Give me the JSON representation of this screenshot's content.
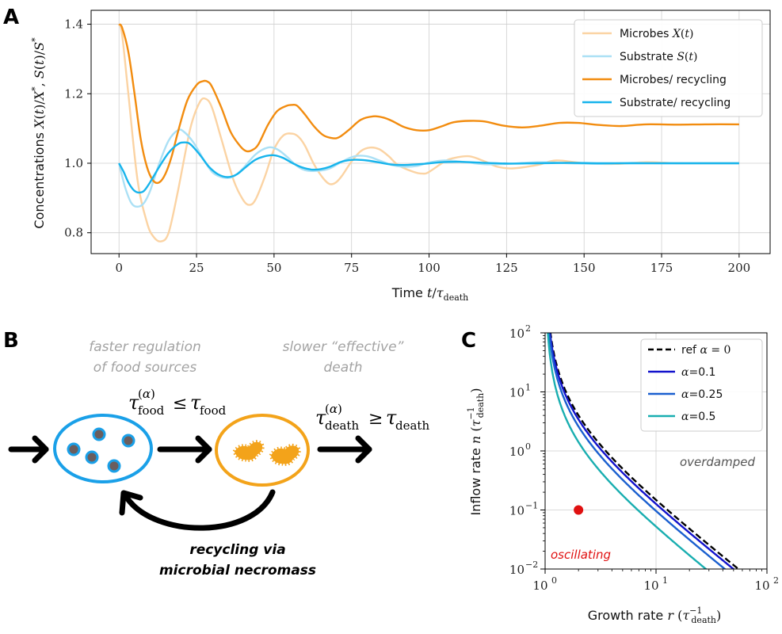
{
  "chart_data": [
    {
      "panel": "A",
      "type": "line",
      "xlabel": "Time t/τ_death",
      "ylabel": "Concentrations X(t)/X*, S(t)/S*",
      "xlim": [
        -9,
        210
      ],
      "ylim": [
        0.74,
        1.44
      ],
      "xticks": [
        0,
        25,
        50,
        75,
        100,
        125,
        150,
        175,
        200
      ],
      "yticks": [
        0.8,
        1.0,
        1.2,
        1.4
      ],
      "ytick_labels": [
        "0.8",
        "1.0",
        "1.2",
        "1.4"
      ],
      "grid": true,
      "legend_position": "top-right",
      "series": [
        {
          "name": "Microbes X(t)",
          "color": "#fbd3a3",
          "width": 2.4,
          "x": [
            0,
            1,
            3,
            6,
            9,
            11,
            13.5,
            16,
            19,
            23,
            26,
            28,
            30,
            33,
            37,
            40,
            42,
            44,
            47,
            50,
            53,
            56,
            58,
            60,
            63,
            66,
            68,
            70,
            72,
            75,
            78,
            81,
            84,
            87,
            90,
            95,
            98,
            100,
            105,
            108,
            113,
            118,
            122,
            127,
            135,
            141,
            150,
            160,
            170,
            180,
            190,
            200
          ],
          "values": [
            1.4,
            1.37,
            1.2,
            0.95,
            0.83,
            0.79,
            0.775,
            0.8,
            0.92,
            1.1,
            1.175,
            1.185,
            1.16,
            1.07,
            0.95,
            0.895,
            0.88,
            0.895,
            0.96,
            1.04,
            1.08,
            1.085,
            1.075,
            1.05,
            0.995,
            0.955,
            0.94,
            0.945,
            0.965,
            1.005,
            1.035,
            1.045,
            1.04,
            1.02,
            0.995,
            0.975,
            0.97,
            0.975,
            1.005,
            1.015,
            1.02,
            1.005,
            0.99,
            0.985,
            0.995,
            1.008,
            1.0,
            0.998,
            1.003,
            1.0,
            1.0,
            1.0
          ]
        },
        {
          "name": "Substrate S(t)",
          "color": "#abe0f5",
          "width": 2.4,
          "x": [
            0,
            2,
            4,
            6,
            8,
            10,
            13,
            16,
            19,
            21,
            24,
            27,
            30,
            33,
            35,
            37,
            40,
            44,
            48,
            51,
            54,
            57,
            60,
            64,
            68,
            72,
            76,
            80,
            84,
            88,
            92,
            96,
            100,
            105,
            110,
            118,
            125,
            135,
            145,
            155,
            165,
            175,
            190,
            200
          ],
          "values": [
            1.0,
            0.93,
            0.885,
            0.875,
            0.885,
            0.92,
            1.0,
            1.065,
            1.095,
            1.09,
            1.06,
            1.015,
            0.975,
            0.96,
            0.958,
            0.962,
            0.985,
            1.025,
            1.045,
            1.04,
            1.02,
            0.995,
            0.98,
            0.978,
            0.985,
            1.005,
            1.02,
            1.02,
            1.008,
            0.995,
            0.99,
            0.992,
            1.002,
            1.008,
            1.005,
            0.997,
            0.998,
            1.003,
            1.0,
            0.998,
            1.001,
            1.0,
            1.0,
            1.0
          ]
        },
        {
          "name": "Microbes/ recycling",
          "color": "#f28c0f",
          "width": 2.4,
          "x": [
            0,
            1,
            3,
            5,
            7,
            9,
            11,
            13,
            15,
            17,
            19,
            22,
            25,
            27,
            28.5,
            30,
            33,
            36,
            39,
            41,
            43,
            45,
            48,
            51,
            54,
            56,
            57.5,
            60,
            63,
            66,
            69,
            71,
            74,
            78,
            82,
            85,
            88,
            92,
            96,
            100,
            104,
            108,
            113,
            118,
            124,
            130,
            136,
            142,
            148,
            155,
            162,
            170,
            180,
            190,
            200
          ],
          "values": [
            1.4,
            1.39,
            1.32,
            1.2,
            1.07,
            0.99,
            0.95,
            0.945,
            0.97,
            1.02,
            1.09,
            1.18,
            1.225,
            1.236,
            1.235,
            1.22,
            1.16,
            1.09,
            1.05,
            1.035,
            1.038,
            1.055,
            1.11,
            1.15,
            1.165,
            1.168,
            1.165,
            1.14,
            1.105,
            1.08,
            1.072,
            1.075,
            1.095,
            1.125,
            1.135,
            1.132,
            1.122,
            1.104,
            1.095,
            1.095,
            1.106,
            1.118,
            1.122,
            1.12,
            1.108,
            1.103,
            1.108,
            1.116,
            1.116,
            1.11,
            1.107,
            1.112,
            1.111,
            1.112,
            1.112
          ]
        },
        {
          "name": "Substrate/ recycling",
          "color": "#17b4ec",
          "width": 2.4,
          "x": [
            0,
            1.5,
            3,
            4.5,
            6,
            8,
            10,
            13,
            16,
            19,
            21,
            23,
            26,
            29,
            32,
            35,
            38,
            41,
            44,
            47,
            50,
            53,
            56,
            59,
            62,
            65,
            68,
            72,
            76,
            80,
            84,
            88,
            92,
            98,
            104,
            110,
            118,
            126,
            135,
            145,
            155,
            165,
            180,
            200
          ],
          "values": [
            1.0,
            0.975,
            0.945,
            0.925,
            0.916,
            0.92,
            0.945,
            0.99,
            1.03,
            1.055,
            1.06,
            1.055,
            1.025,
            0.99,
            0.968,
            0.96,
            0.968,
            0.99,
            1.01,
            1.02,
            1.023,
            1.015,
            1.0,
            0.988,
            0.982,
            0.983,
            0.99,
            1.005,
            1.01,
            1.008,
            1.002,
            0.996,
            0.995,
            0.998,
            1.003,
            1.004,
            1.001,
            0.999,
            1.0,
            1.001,
            1.0,
            1.0,
            1.0,
            1.0
          ]
        }
      ]
    },
    {
      "panel": "C",
      "type": "line",
      "xscale": "log",
      "yscale": "log",
      "xlabel": "Growth rate r (τ_death⁻¹)",
      "ylabel": "Inflow rate n (τ_death⁻¹)",
      "xlim": [
        1,
        100
      ],
      "ylim": [
        0.01,
        100
      ],
      "grid": true,
      "legend_position": "top-right",
      "series": [
        {
          "name": "ref α = 0",
          "color": "#000000",
          "dashed": true,
          "alpha": 0
        },
        {
          "name": "α =0.1",
          "color": "#1212cc",
          "dashed": false,
          "alpha": 0.1
        },
        {
          "name": "α =0.25",
          "color": "#1a5fcf",
          "dashed": false,
          "alpha": 0.25
        },
        {
          "name": "α =0.5",
          "color": "#19aeb0",
          "dashed": false,
          "alpha": 0.5
        }
      ],
      "point": {
        "x": 2,
        "y": 0.1,
        "color": "#e01010"
      },
      "annotations": {
        "upper": "overdamped",
        "lower": "oscillating"
      }
    }
  ],
  "panel_labels": {
    "a": "A",
    "b": "B",
    "c": "C"
  },
  "panelA": {
    "xlabel_prefix": "Time ",
    "ylabel_prefix": "Concentrations ",
    "legend": [
      "Microbes ",
      "Substrate ",
      "Microbes/ recycling",
      "Substrate/ recycling"
    ]
  },
  "panelB": {
    "left_caption": [
      "faster regulation",
      "of food sources"
    ],
    "right_caption": [
      "slower “effective”",
      "death"
    ],
    "recycle_caption": [
      "recycling via",
      "microbial necromass"
    ],
    "blue": "#1aa0e8",
    "orange": "#f3a31a",
    "particle": "#6b5e5e"
  },
  "panelC": {
    "xlabel_prefix": "Growth rate ",
    "ylabel_prefix": "Inflow rate ",
    "overdamped": "overdamped",
    "oscillating": "oscillating",
    "legend": [
      "ref ",
      "=0.1",
      "=0.25",
      "=0.5"
    ]
  }
}
